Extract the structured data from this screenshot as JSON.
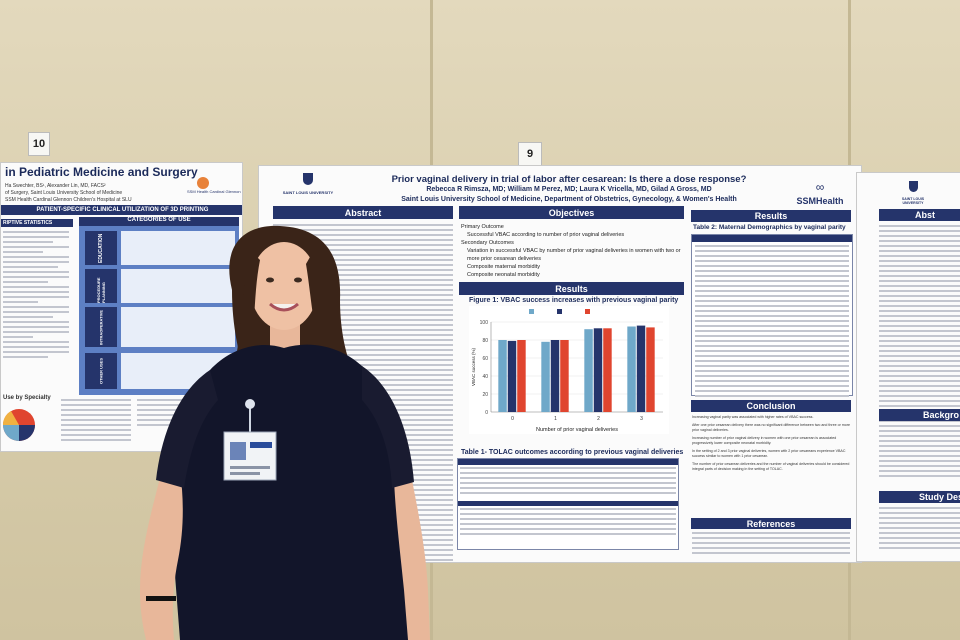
{
  "scene": {
    "poster_numbers": [
      "10",
      "9"
    ]
  },
  "left_poster": {
    "title": "in Pediatric Medicine and Surgery",
    "authors": "Ha Swechter, BS¹, Alexander Lin, MD, FACS²",
    "affiliation": "of Surgery, Saint Louis University School of Medicine",
    "affiliation2": "SSM Health Cardinal Glennon Children's Hospital at SLU",
    "logo_text": "SSM Health Cardinal Glennon",
    "banner": "PATIENT-SPECIFIC CLINICAL UTILIZATION OF 3D PRINTING",
    "stats_header": "RIPTIVE STATISTICS",
    "categories_header": "CATEGORIES OF USE",
    "categories": [
      "EDUCATION",
      "PROCEDURE PLANNING",
      "INTRAOPERATIVE",
      "OTHER USES"
    ],
    "specialty_label": "Use by Specialty"
  },
  "center_poster": {
    "title": "Prior vaginal delivery in trial of labor after cesarean: Is there a dose response?",
    "authors": "Rebecca R Rimsza, MD; William M Perez, MD; Laura K Vricella, MD, Gilad A Gross, MD",
    "affiliation": "Saint Louis University School of Medicine, Department of Obstetrics, Gynecology, & Women's Health",
    "university_logo": "SAINT LOUIS UNIVERSITY",
    "ssm_logo": "SSMHealth",
    "sections": {
      "abstract": "Abstract",
      "objectives": "Objectives",
      "results_mid": "Results",
      "results_right": "Results",
      "conclusion": "Conclusion",
      "references": "References"
    },
    "objectives_text": [
      "Primary Outcome",
      "Successful VBAC according to number of prior vaginal deliveries",
      "Secondary Outcomes",
      "Variation in successful VBAC by number of prior vaginal deliveries in women with two or more prior cesarean deliveries",
      "Composite maternal morbidity",
      "Composite neonatal morbidity"
    ],
    "figure_title": "Figure 1: VBAC success increases with previous vaginal parity",
    "table1_title": "Table 1- TOLAC outcomes according to previous vaginal deliveries",
    "table2_title": "Table 2: Maternal Demographics by vaginal parity",
    "conclusion_text": [
      "Increasing vaginal parity was associated with higher rates of VBAC success.",
      "After one prior cesarean delivery there was no significant difference between two and three or more prior vaginal deliveries.",
      "Increasing number of prior vaginal delivery in women with one prior cesarean is associated progressively lower composite neonatal morbidity.",
      "In the setting of 2 and 3 prior vaginal deliveries, women with 2 prior cesareans experience VBAC success similar to women with 1 prior cesarean.",
      "The number of prior cesarean deliveries and the number of vaginal deliveries should be considered integral parts of decision making in the setting of TOLAC."
    ],
    "chart_data": {
      "type": "bar",
      "title": "Figure 1: VBAC success increases with previous vaginal parity",
      "xlabel": "Number of prior vaginal deliveries",
      "ylabel": "VBAC success (%)",
      "legend_placement": "top",
      "categories": [
        "0",
        "1",
        "2",
        "3"
      ],
      "series": [
        {
          "values": [
            80,
            78,
            92,
            95
          ],
          "color": "#6fa8c9"
        },
        {
          "values": [
            79,
            80,
            93,
            96
          ],
          "color": "#25346b"
        },
        {
          "values": [
            80,
            80,
            93,
            94
          ],
          "color": "#e0452f"
        }
      ],
      "ylim": [
        0,
        100
      ],
      "grid": true
    }
  },
  "right_poster": {
    "university_logo": "SAINT LOUIS UNIVERSITY",
    "sections": [
      "Abst",
      "Backgro",
      "Study Desi"
    ]
  },
  "person": {
    "description_visible": false
  }
}
